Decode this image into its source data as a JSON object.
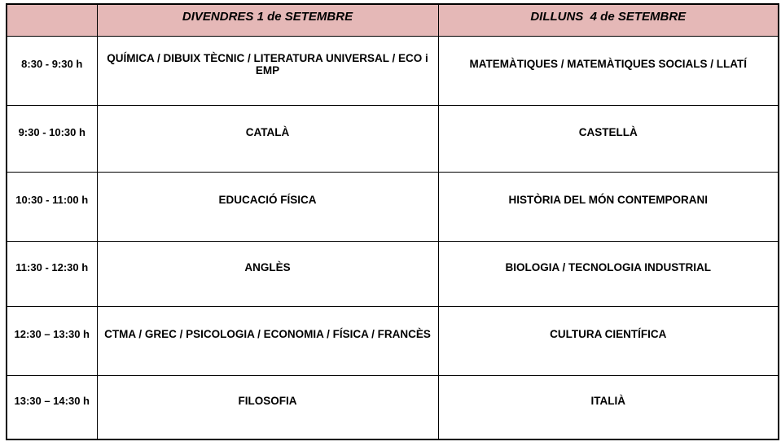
{
  "colors": {
    "header_bg": "#e5b8b7",
    "border": "#000000",
    "text": "#000000",
    "page_bg": "#ffffff"
  },
  "table": {
    "columns": [
      {
        "key": "time",
        "label": ""
      },
      {
        "key": "divendres",
        "label": "DIVENDRES 1 de SETEMBRE"
      },
      {
        "key": "dilluns",
        "label": "DILLUNS  4 de SETEMBRE"
      }
    ],
    "rows": [
      {
        "time": "8:30 - 9:30 h",
        "divendres": "QUÍMICA / DIBUIX TÈCNIC / LITERATURA UNIVERSAL / ECO i EMP",
        "dilluns": "MATEMÀTIQUES / MATEMÀTIQUES SOCIALS / LLATÍ"
      },
      {
        "time": "9:30 - 10:30 h",
        "divendres": "CATALÀ",
        "dilluns": "CASTELLÀ"
      },
      {
        "time": "10:30 - 11:00 h",
        "divendres": "EDUCACIÓ FÍSICA",
        "dilluns": "HISTÒRIA DEL MÓN CONTEMPORANI"
      },
      {
        "time": "11:30 - 12:30 h",
        "divendres": "ANGLÈS",
        "dilluns": "BIOLOGIA / TECNOLOGIA INDUSTRIAL"
      },
      {
        "time": "12:30 – 13:30 h",
        "divendres": "CTMA / GREC / PSICOLOGIA / ECONOMIA / FÍSICA / FRANCÈS",
        "dilluns": "CULTURA CIENTÍFICA"
      },
      {
        "time": "13:30 – 14:30 h",
        "divendres": "FILOSOFIA",
        "dilluns": "ITALIÀ"
      }
    ]
  }
}
